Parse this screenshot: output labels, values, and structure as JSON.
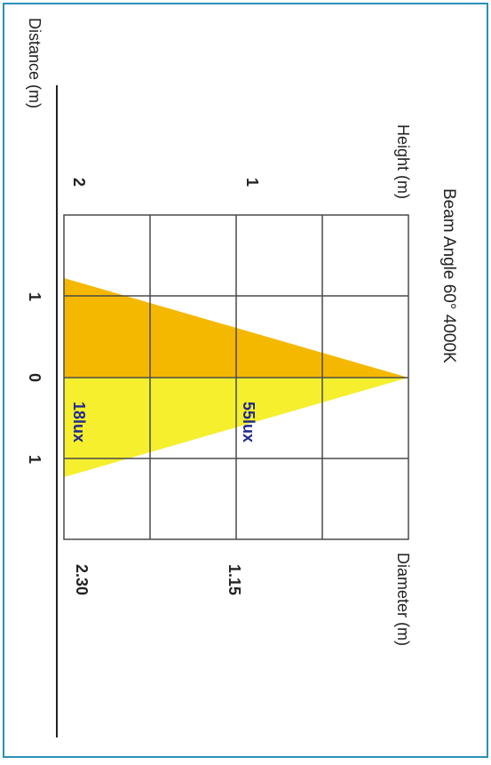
{
  "title": "Beam Angle 60°  4000K",
  "labels": {
    "height": "Height (m)",
    "diameter": "Diameter (m)",
    "distance": "Distance (m)"
  },
  "height_ticks": [
    "1",
    "2"
  ],
  "distance_ticks": [
    "1",
    "0",
    "1"
  ],
  "diameter_values": [
    "1.15",
    "2.30"
  ],
  "lux_values": [
    "55lux",
    "18lux"
  ],
  "colors": {
    "beam_upper": "#f5b800",
    "beam_lower": "#f5ef2e",
    "grid_lines": "#4a4a4a",
    "lux_text": "#1f2a8a",
    "border": "#2a8fb8"
  }
}
